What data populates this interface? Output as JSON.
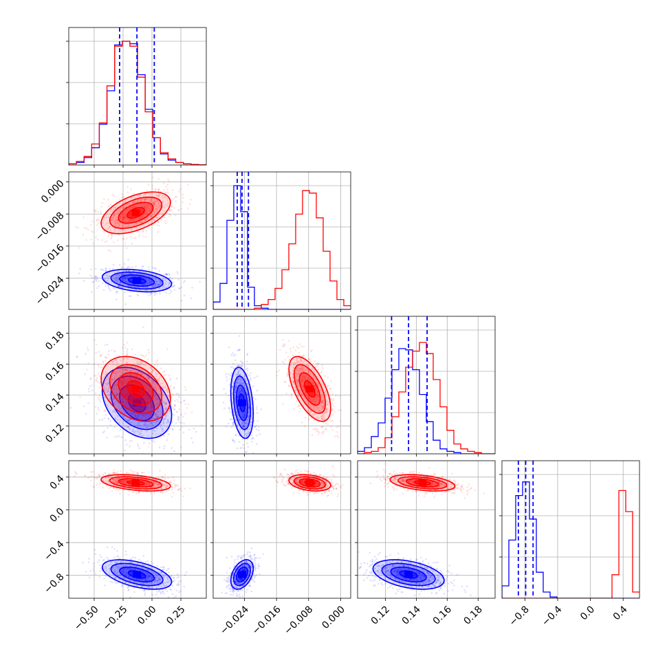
{
  "chart_data": {
    "type": "corner",
    "title": "",
    "grid": true,
    "series": [
      {
        "color": "#0000ff",
        "x": {
          "median": -0.13,
          "q16": -0.28,
          "q84": 0.02,
          "hist": [
            0.01,
            0.02,
            0.06,
            0.14,
            0.33,
            0.6,
            0.97,
            1.0,
            0.98,
            0.73,
            0.45,
            0.22,
            0.09,
            0.04,
            0.02,
            0.01,
            0.005,
            0.002
          ]
        },
        "y": {
          "median": -0.0246,
          "q16": -0.0258,
          "q84": -0.023,
          "hist": [
            0.06,
            0.21,
            0.72,
            1.0,
            0.79,
            0.18,
            0.03,
            0.01,
            0.0,
            0.0,
            0.0,
            0.0,
            0.0,
            0.0,
            0.0,
            0.0,
            0.0,
            0.0,
            0.0,
            0.0
          ]
        },
        "z": {
          "median": 0.135,
          "q16": 0.124,
          "q84": 0.147,
          "hist": [
            0.02,
            0.05,
            0.14,
            0.25,
            0.45,
            0.68,
            0.85,
            0.84,
            0.68,
            0.48,
            0.26,
            0.11,
            0.04,
            0.02,
            0.01,
            0.0,
            0.0,
            0.0,
            0.0,
            0.0
          ]
        },
        "w": {
          "median": -0.79,
          "q16": -0.88,
          "q84": -0.7,
          "hist": [
            0.1,
            0.47,
            0.83,
            0.94,
            0.64,
            0.21,
            0.05,
            0.01,
            0.0,
            0.0,
            0.0,
            0.0,
            0.0,
            0.0,
            0.0,
            0.0,
            0.0,
            0.0,
            0.0,
            0.0
          ]
        },
        "centers": {
          "x": -0.13,
          "y": -0.0246,
          "z": 0.135,
          "w": -0.79
        },
        "sigmas": {
          "x": 0.15,
          "y": 0.0014,
          "z": 0.0115,
          "w": 0.09
        },
        "corr": {
          "xy": -0.3,
          "xz": -0.35,
          "xw": -0.5,
          "yz": -0.3,
          "yw": 0.4,
          "zw": -0.4
        }
      },
      {
        "color": "#ff0000",
        "x": {
          "hist": [
            0.01,
            0.03,
            0.07,
            0.17,
            0.34,
            0.64,
            0.96,
            1.0,
            0.96,
            0.71,
            0.43,
            0.22,
            0.1,
            0.05,
            0.02,
            0.01,
            0.005,
            0.002
          ]
        },
        "y": {
          "hist": [
            0.0,
            0.0,
            0.0,
            0.0,
            0.0,
            0.0,
            0.01,
            0.04,
            0.08,
            0.17,
            0.32,
            0.53,
            0.77,
            0.96,
            0.94,
            0.74,
            0.47,
            0.23,
            0.08,
            0.03
          ]
        },
        "z": {
          "hist": [
            0.0,
            0.01,
            0.02,
            0.05,
            0.13,
            0.3,
            0.5,
            0.7,
            0.83,
            0.9,
            0.81,
            0.6,
            0.38,
            0.19,
            0.08,
            0.04,
            0.02,
            0.01,
            0.0,
            0.0
          ]
        },
        "w": {
          "hist": [
            0.0,
            0.0,
            0.0,
            0.0,
            0.0,
            0.0,
            0.0,
            0.0,
            0.0,
            0.0,
            0.0,
            0.0,
            0.0,
            0.0,
            0.0,
            0.0,
            0.19,
            0.87,
            0.7,
            0.05
          ]
        },
        "centers": {
          "x": -0.14,
          "y": -0.0077,
          "z": 0.144,
          "w": 0.33
        },
        "sigmas": {
          "x": 0.15,
          "y": 0.0026,
          "z": 0.0105,
          "w": 0.05
        },
        "corr": {
          "xy": 0.5,
          "xz": -0.3,
          "xw": -0.4,
          "yz": -0.6,
          "yw": -0.3,
          "zw": -0.4
        }
      }
    ],
    "axes": {
      "x": {
        "range": [
          -0.72,
          0.47
        ],
        "ticks": [
          -0.5,
          -0.25,
          0.0,
          0.25
        ],
        "tick_labels": [
          "−0.50",
          "−0.25",
          "0.00",
          "0.25"
        ]
      },
      "y": {
        "range": [
          -0.0318,
          0.0025
        ],
        "ticks": [
          -0.024,
          -0.016,
          -0.008,
          0.0
        ],
        "tick_labels": [
          "−0.024",
          "−0.016",
          "−0.008",
          "0.000"
        ]
      },
      "z": {
        "range": [
          0.102,
          0.191
        ],
        "ticks": [
          0.12,
          0.14,
          0.16,
          0.18
        ],
        "tick_labels": [
          "0.12",
          "0.14",
          "0.16",
          "0.18"
        ]
      },
      "w": {
        "range": [
          -1.08,
          0.6
        ],
        "ticks": [
          -0.8,
          -0.4,
          0.0,
          0.4
        ],
        "tick_labels": [
          "−0.8",
          "−0.4",
          "0.0",
          "0.4"
        ]
      }
    },
    "hist_ylim_factor": 1.0
  }
}
